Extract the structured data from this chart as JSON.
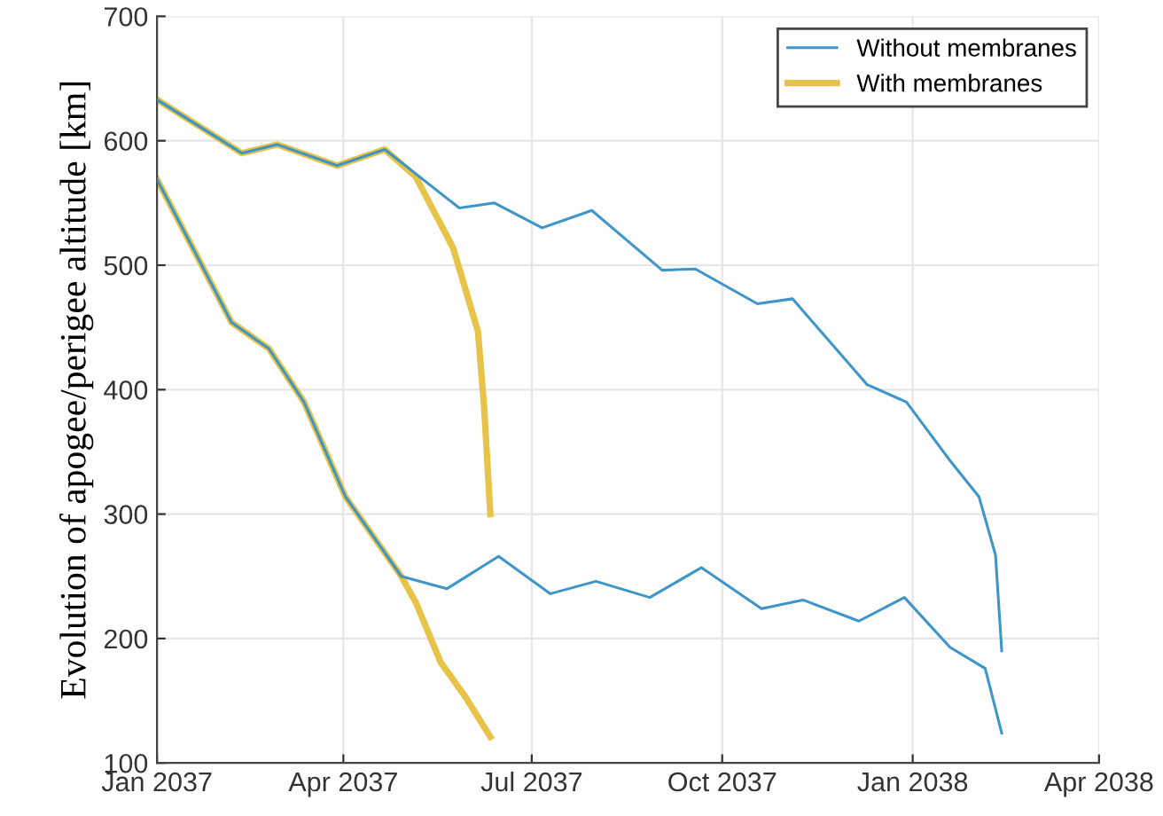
{
  "chart_data": {
    "type": "line",
    "ylabel": "Evolution of apogee/perigee altitude [km]",
    "xlim": [
      "2037-01-01",
      "2038-04-01"
    ],
    "xticks": [
      {
        "value": "2037-01-01",
        "label": "Jan 2037"
      },
      {
        "value": "2037-04-01",
        "label": "Apr 2037"
      },
      {
        "value": "2037-07-01",
        "label": "Jul 2037"
      },
      {
        "value": "2037-10-01",
        "label": "Oct 2037"
      },
      {
        "value": "2038-01-01",
        "label": "Jan 2038"
      },
      {
        "value": "2038-04-01",
        "label": "Apr 2038"
      }
    ],
    "ylim": [
      100,
      700
    ],
    "yticks": [
      100,
      200,
      300,
      400,
      500,
      600,
      700
    ],
    "grid": true,
    "legend": "top right",
    "series": [
      {
        "name": "Without membranes",
        "color": "#3d95c8",
        "x": [
          "2037-01-01",
          "2037-02-11",
          "2037-02-28",
          "2037-03-29",
          "2037-04-21",
          "2037-05-27",
          "2037-06-13",
          "2037-07-06",
          "2037-07-30",
          "2037-09-02",
          "2037-09-18",
          "2037-10-18",
          "2037-11-04",
          "2037-12-10",
          "2037-12-29",
          "2038-01-19",
          "2038-02-02",
          "2038-02-10",
          "2038-02-13"
        ],
        "values": [
          633,
          590,
          597,
          580,
          593,
          546,
          550,
          530,
          544,
          496,
          497,
          469,
          473,
          404,
          390,
          343,
          314,
          267,
          190
        ]
      },
      {
        "name": "With membranes",
        "color": "#e8c34a",
        "x": [
          "2037-01-01",
          "2037-02-11",
          "2037-02-28",
          "2037-03-29",
          "2037-04-21",
          "2037-05-06",
          "2037-05-24",
          "2037-06-05",
          "2037-06-08",
          "2037-06-11"
        ],
        "values": [
          633,
          590,
          597,
          580,
          593,
          571,
          514,
          447,
          386,
          300
        ]
      },
      {
        "color": "#3d95c8",
        "x": [
          "2037-01-01",
          "2037-02-06",
          "2037-02-24",
          "2037-03-13",
          "2037-04-02",
          "2037-04-29",
          "2037-05-21",
          "2037-06-15",
          "2037-07-10",
          "2037-08-01",
          "2037-08-27",
          "2037-09-21",
          "2037-10-20",
          "2037-11-09",
          "2037-12-06",
          "2037-12-28",
          "2038-01-19",
          "2038-02-05",
          "2038-02-13"
        ],
        "values": [
          569,
          454,
          433,
          390,
          314,
          250,
          240,
          266,
          236,
          246,
          233,
          257,
          224,
          231,
          214,
          233,
          193,
          176,
          124
        ]
      },
      {
        "color": "#e8c34a",
        "x": [
          "2037-01-01",
          "2037-02-06",
          "2037-02-24",
          "2037-03-13",
          "2037-04-02",
          "2037-04-29",
          "2037-05-06",
          "2037-05-18",
          "2037-05-30",
          "2037-06-11"
        ],
        "values": [
          569,
          454,
          433,
          390,
          314,
          250,
          229,
          181,
          153,
          121
        ]
      }
    ]
  }
}
